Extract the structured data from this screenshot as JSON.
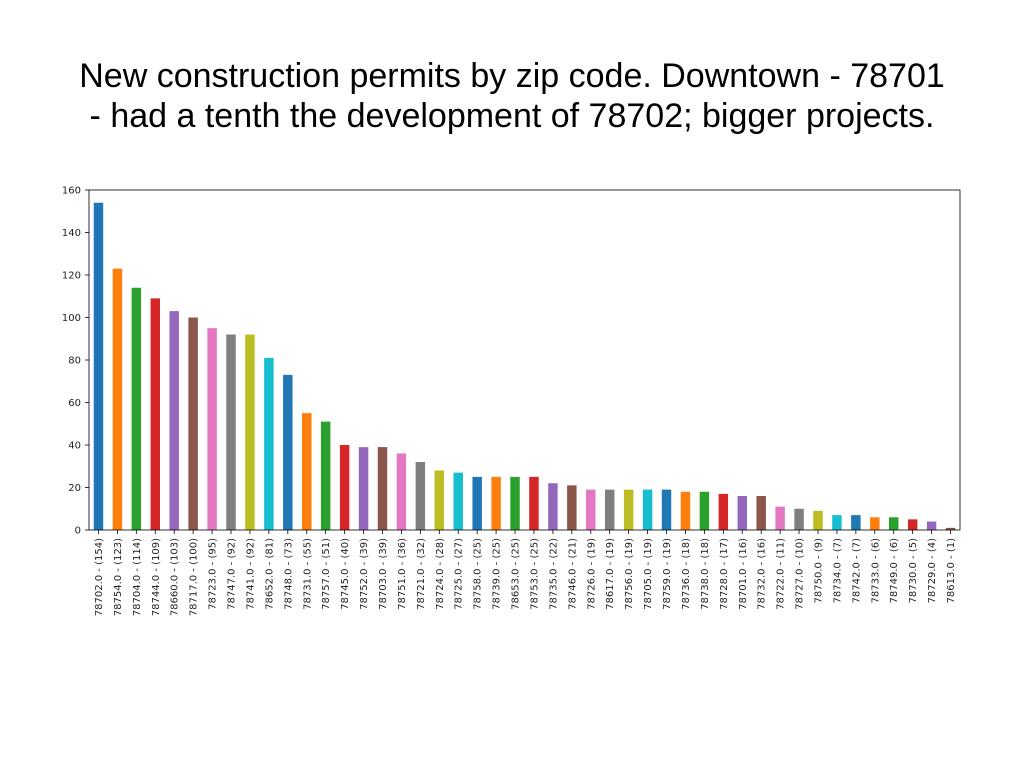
{
  "slide": {
    "title_line1": "New construction permits by zip code. Downtown - 78701",
    "title_line2": "- had a tenth the development of 78702; bigger projects."
  },
  "chart_data": {
    "type": "bar",
    "title": "",
    "xlabel": "",
    "ylabel": "",
    "ylim": [
      0,
      160
    ],
    "yticks": [
      0,
      20,
      40,
      60,
      80,
      100,
      120,
      140,
      160
    ],
    "grid": false,
    "categories": [
      "78702.0 - (154)",
      "78754.0 - (123)",
      "78704.0 - (114)",
      "78744.0 - (109)",
      "78660.0 - (103)",
      "78717.0 - (100)",
      "78723.0 - (95)",
      "78747.0 - (92)",
      "78741.0 - (92)",
      "78652.0 - (81)",
      "78748.0 - (73)",
      "78731.0 - (55)",
      "78757.0 - (51)",
      "78745.0 - (40)",
      "78752.0 - (39)",
      "78703.0 - (39)",
      "78751.0 - (36)",
      "78721.0 - (32)",
      "78724.0 - (28)",
      "78725.0 - (27)",
      "78758.0 - (25)",
      "78739.0 - (25)",
      "78653.0 - (25)",
      "78753.0 - (25)",
      "78735.0 - (22)",
      "78746.0 - (21)",
      "78726.0 - (19)",
      "78617.0 - (19)",
      "78756.0 - (19)",
      "78705.0 - (19)",
      "78759.0 - (19)",
      "78736.0 - (18)",
      "78738.0 - (18)",
      "78728.0 - (17)",
      "78701.0 - (16)",
      "78732.0 - (16)",
      "78722.0 - (11)",
      "78727.0 - (10)",
      "78750.0 - (9)",
      "78734.0 - (7)",
      "78742.0 - (7)",
      "78733.0 - (6)",
      "78749.0 - (6)",
      "78730.0 - (5)",
      "78729.0 - (4)",
      "78613.0 - (1)"
    ],
    "values": [
      154,
      123,
      114,
      109,
      103,
      100,
      95,
      92,
      92,
      81,
      73,
      55,
      51,
      40,
      39,
      39,
      36,
      32,
      28,
      27,
      25,
      25,
      25,
      25,
      22,
      21,
      19,
      19,
      19,
      19,
      19,
      18,
      18,
      17,
      16,
      16,
      11,
      10,
      9,
      7,
      7,
      6,
      6,
      5,
      4,
      1
    ],
    "colors": [
      "#1f77b4",
      "#ff7f0e",
      "#2ca02c",
      "#d62728",
      "#9467bd",
      "#8c564b",
      "#e377c2",
      "#7f7f7f",
      "#bcbd22",
      "#17becf"
    ]
  }
}
